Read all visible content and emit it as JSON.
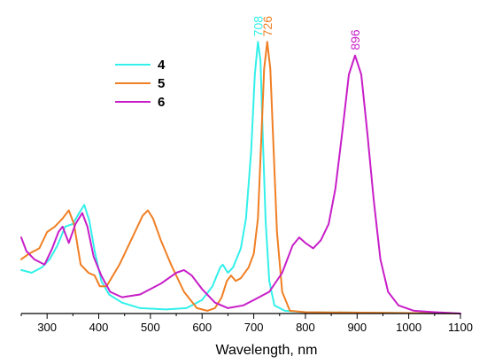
{
  "chart_data": {
    "type": "line",
    "xlabel": "Wavelength, nm",
    "ylabel": "",
    "xlim": [
      250,
      1100
    ],
    "ylim": [
      0,
      1.05
    ],
    "x_ticks": [
      300,
      400,
      500,
      600,
      700,
      800,
      900,
      1000,
      1100
    ],
    "grid": false,
    "legend_position": "top-left",
    "series": [
      {
        "name": "4",
        "color": "#33f0ea",
        "points": [
          [
            250,
            0.16
          ],
          [
            270,
            0.15
          ],
          [
            290,
            0.17
          ],
          [
            305,
            0.2
          ],
          [
            320,
            0.25
          ],
          [
            335,
            0.32
          ],
          [
            350,
            0.33
          ],
          [
            362,
            0.37
          ],
          [
            372,
            0.4
          ],
          [
            382,
            0.34
          ],
          [
            392,
            0.23
          ],
          [
            405,
            0.12
          ],
          [
            420,
            0.07
          ],
          [
            445,
            0.04
          ],
          [
            480,
            0.02
          ],
          [
            530,
            0.015
          ],
          [
            570,
            0.02
          ],
          [
            600,
            0.05
          ],
          [
            620,
            0.1
          ],
          [
            635,
            0.17
          ],
          [
            640,
            0.18
          ],
          [
            650,
            0.15
          ],
          [
            660,
            0.17
          ],
          [
            675,
            0.24
          ],
          [
            685,
            0.35
          ],
          [
            695,
            0.6
          ],
          [
            702,
            0.88
          ],
          [
            708,
            1.0
          ],
          [
            713,
            0.93
          ],
          [
            718,
            0.62
          ],
          [
            723,
            0.34
          ],
          [
            730,
            0.12
          ],
          [
            740,
            0.03
          ],
          [
            760,
            0.01
          ],
          [
            800,
            0.005
          ],
          [
            1100,
            0.0
          ]
        ]
      },
      {
        "name": "5",
        "color": "#f07f24",
        "points": [
          [
            250,
            0.2
          ],
          [
            265,
            0.22
          ],
          [
            285,
            0.24
          ],
          [
            300,
            0.3
          ],
          [
            315,
            0.32
          ],
          [
            330,
            0.35
          ],
          [
            342,
            0.38
          ],
          [
            352,
            0.33
          ],
          [
            365,
            0.18
          ],
          [
            380,
            0.15
          ],
          [
            392,
            0.14
          ],
          [
            402,
            0.1
          ],
          [
            415,
            0.1
          ],
          [
            440,
            0.18
          ],
          [
            465,
            0.28
          ],
          [
            485,
            0.36
          ],
          [
            495,
            0.38
          ],
          [
            505,
            0.35
          ],
          [
            520,
            0.27
          ],
          [
            540,
            0.18
          ],
          [
            565,
            0.08
          ],
          [
            590,
            0.02
          ],
          [
            610,
            0.01
          ],
          [
            625,
            0.02
          ],
          [
            638,
            0.06
          ],
          [
            648,
            0.12
          ],
          [
            656,
            0.14
          ],
          [
            665,
            0.12
          ],
          [
            675,
            0.13
          ],
          [
            690,
            0.17
          ],
          [
            700,
            0.22
          ],
          [
            708,
            0.35
          ],
          [
            714,
            0.62
          ],
          [
            720,
            0.9
          ],
          [
            726,
            1.0
          ],
          [
            732,
            0.9
          ],
          [
            738,
            0.62
          ],
          [
            745,
            0.3
          ],
          [
            755,
            0.08
          ],
          [
            770,
            0.01
          ],
          [
            800,
            0.005
          ],
          [
            1100,
            0.0
          ]
        ]
      },
      {
        "name": "6",
        "color": "#c81ec8",
        "points": [
          [
            250,
            0.28
          ],
          [
            260,
            0.23
          ],
          [
            275,
            0.2
          ],
          [
            295,
            0.18
          ],
          [
            310,
            0.24
          ],
          [
            322,
            0.3
          ],
          [
            330,
            0.32
          ],
          [
            342,
            0.26
          ],
          [
            355,
            0.33
          ],
          [
            368,
            0.37
          ],
          [
            378,
            0.32
          ],
          [
            390,
            0.21
          ],
          [
            405,
            0.14
          ],
          [
            422,
            0.08
          ],
          [
            445,
            0.06
          ],
          [
            480,
            0.07
          ],
          [
            520,
            0.11
          ],
          [
            550,
            0.15
          ],
          [
            565,
            0.16
          ],
          [
            580,
            0.14
          ],
          [
            600,
            0.09
          ],
          [
            625,
            0.04
          ],
          [
            650,
            0.02
          ],
          [
            680,
            0.03
          ],
          [
            700,
            0.05
          ],
          [
            730,
            0.08
          ],
          [
            755,
            0.15
          ],
          [
            775,
            0.25
          ],
          [
            788,
            0.28
          ],
          [
            800,
            0.26
          ],
          [
            815,
            0.24
          ],
          [
            830,
            0.27
          ],
          [
            845,
            0.33
          ],
          [
            858,
            0.46
          ],
          [
            872,
            0.68
          ],
          [
            884,
            0.88
          ],
          [
            896,
            0.95
          ],
          [
            908,
            0.88
          ],
          [
            920,
            0.66
          ],
          [
            932,
            0.42
          ],
          [
            945,
            0.2
          ],
          [
            960,
            0.08
          ],
          [
            980,
            0.03
          ],
          [
            1010,
            0.01
          ],
          [
            1050,
            0.005
          ],
          [
            1100,
            0.0
          ]
        ]
      }
    ],
    "annotations": [
      {
        "text": "708",
        "x": 708,
        "y": 1.0,
        "color": "#33f0ea"
      },
      {
        "text": "726",
        "x": 726,
        "y": 1.0,
        "color": "#f07f24"
      },
      {
        "text": "896",
        "x": 896,
        "y": 0.95,
        "color": "#c81ec8"
      }
    ]
  }
}
